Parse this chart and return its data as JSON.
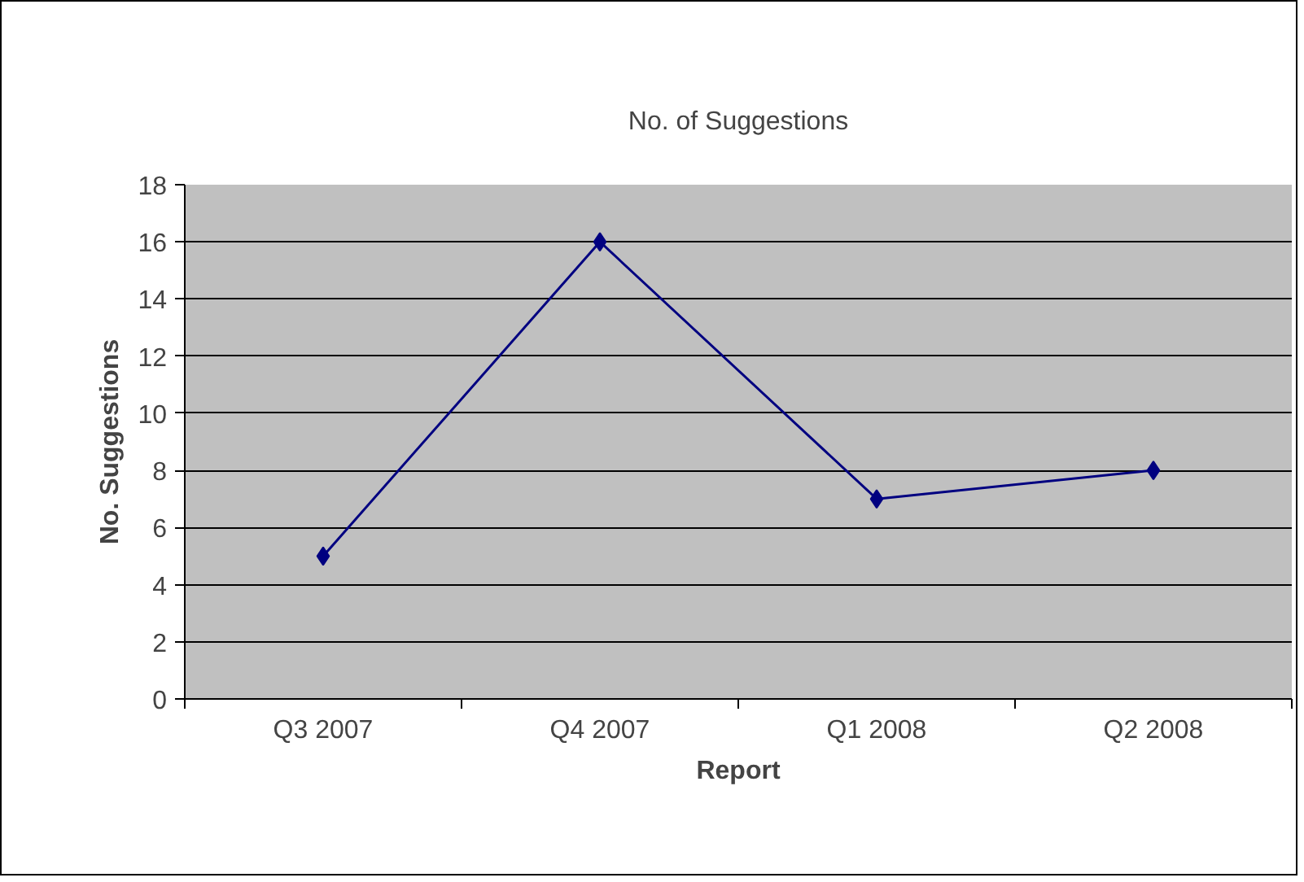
{
  "chart_data": {
    "type": "line",
    "title": "No. of Suggestions",
    "xlabel": "Report",
    "ylabel": "No. Suggestions",
    "categories": [
      "Q3 2007",
      "Q4 2007",
      "Q1 2008",
      "Q2 2008"
    ],
    "series": [
      {
        "color": "#000080",
        "values": [
          5,
          16,
          7,
          8
        ]
      }
    ],
    "ylim": [
      0,
      18
    ],
    "yticks": [
      0,
      2,
      4,
      6,
      8,
      10,
      12,
      14,
      16,
      18
    ],
    "grid": "y",
    "marker": "diamond",
    "line_style": "solid"
  }
}
